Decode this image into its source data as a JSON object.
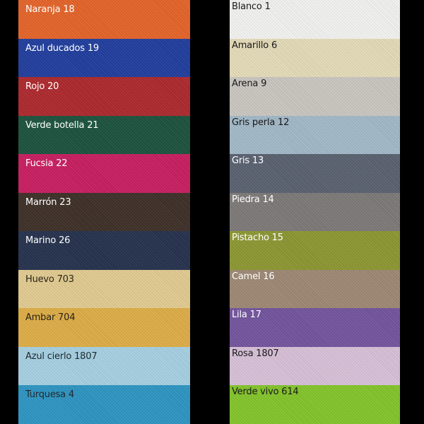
{
  "left_column": [
    {
      "label": "Naranja 18",
      "color": "#e8662a",
      "text_color": "#ffffff"
    },
    {
      "label": "Azul ducados 19",
      "color": "#213fa0",
      "text_color": "#ffffff"
    },
    {
      "label": "Rojo 20",
      "color": "#b02a2e",
      "text_color": "#ffffff"
    },
    {
      "label": "Verde botella 21",
      "color": "#1d5540",
      "text_color": "#ffffff"
    },
    {
      "label": "Fucsia 22",
      "color": "#cc1f63",
      "text_color": "#ffffff"
    },
    {
      "label": "Marrón 23",
      "color": "#3f3129",
      "text_color": "#ffffff"
    },
    {
      "label": "Marino 26",
      "color": "#27334f",
      "text_color": "#ffffff"
    },
    {
      "label": "Huevo 703",
      "color": "#e6cf93",
      "text_color": "#2a2418"
    },
    {
      "label": "Ambar 704",
      "color": "#e2b048",
      "text_color": "#2a2418"
    },
    {
      "label": "Azul cierlo 1807",
      "color": "#a9d4e6",
      "text_color": "#1e2a30"
    },
    {
      "label": "Turquesa 4",
      "color": "#2f98c6",
      "text_color": "#1e2a30"
    }
  ],
  "right_column": [
    {
      "label": "Blanco 1",
      "color": "#f6f6f4",
      "text_color": "#1a1a1a"
    },
    {
      "label": "Amarillo 6",
      "color": "#e8dfbc",
      "text_color": "#1a1a1a"
    },
    {
      "label": "Arena 9",
      "color": "#cdcac4",
      "text_color": "#1a1a1a"
    },
    {
      "label": "Gris perla 12",
      "color": "#a6bccb",
      "text_color": "#1a1a1a"
    },
    {
      "label": "Gris 13",
      "color": "#5b6372",
      "text_color": "#ffffff"
    },
    {
      "label": "Piedra 14",
      "color": "#7f7c7a",
      "text_color": "#ffffff"
    },
    {
      "label": "Pistacho 15",
      "color": "#8f9a34",
      "text_color": "#ffffff"
    },
    {
      "label": "Camel 16",
      "color": "#a08b76",
      "text_color": "#ffffff"
    },
    {
      "label": "Lila 17",
      "color": "#7556a0",
      "text_color": "#ffffff"
    },
    {
      "label": "Rosa 1807",
      "color": "#dcc4dc",
      "text_color": "#1a1a1a"
    },
    {
      "label": "Verde vivo 614",
      "color": "#86c82c",
      "text_color": "#1a1a1a"
    }
  ]
}
